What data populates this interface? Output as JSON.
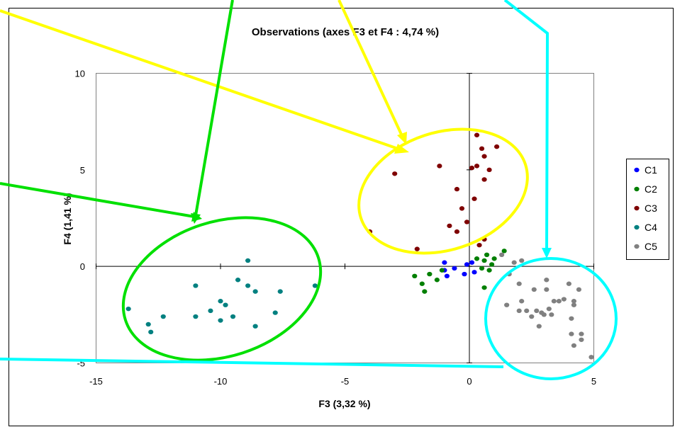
{
  "chart_data": {
    "type": "scatter",
    "title": "Observations (axes F3 et F4 : 4,74 %)",
    "xlabel": "F3 (3,32 %)",
    "ylabel": "F4 (1,41 %)",
    "xlim": [
      -15,
      5
    ],
    "ylim": [
      -5,
      10
    ],
    "x_ticks": [
      "-15",
      "-10",
      "-5",
      "0",
      "5"
    ],
    "y_ticks": [
      "10",
      "5",
      "0",
      "-5"
    ],
    "legend_position": "right",
    "series": [
      {
        "name": "C1",
        "color": "#0000ff",
        "points": [
          [
            -1.0,
            -0.2
          ],
          [
            -0.9,
            -0.5
          ],
          [
            -0.6,
            -0.1
          ],
          [
            -0.2,
            -0.4
          ],
          [
            -0.1,
            0.1
          ],
          [
            0.1,
            0.2
          ],
          [
            0.2,
            -0.3
          ],
          [
            -1.0,
            0.2
          ]
        ]
      },
      {
        "name": "C2",
        "color": "#007f00",
        "points": [
          [
            -2.2,
            -0.5
          ],
          [
            -1.9,
            -0.9
          ],
          [
            -1.8,
            -1.3
          ],
          [
            -1.6,
            -0.4
          ],
          [
            -1.3,
            -0.7
          ],
          [
            -1.1,
            -0.2
          ],
          [
            0.3,
            0.4
          ],
          [
            0.5,
            -0.1
          ],
          [
            0.6,
            0.3
          ],
          [
            0.7,
            0.6
          ],
          [
            0.8,
            -0.2
          ],
          [
            0.9,
            0.1
          ],
          [
            0.6,
            -1.1
          ],
          [
            1.0,
            0.4
          ],
          [
            1.4,
            0.8
          ]
        ]
      },
      {
        "name": "C3",
        "color": "#7f0000",
        "points": [
          [
            0.3,
            6.8
          ],
          [
            0.5,
            6.1
          ],
          [
            1.1,
            6.2
          ],
          [
            0.6,
            5.7
          ],
          [
            -1.2,
            5.2
          ],
          [
            0.1,
            5.1
          ],
          [
            0.3,
            5.2
          ],
          [
            0.8,
            5.0
          ],
          [
            -3.0,
            4.8
          ],
          [
            0.6,
            4.5
          ],
          [
            -0.5,
            4.0
          ],
          [
            0.2,
            3.5
          ],
          [
            -0.3,
            3.0
          ],
          [
            -0.1,
            2.3
          ],
          [
            -0.8,
            2.1
          ],
          [
            -0.5,
            1.8
          ],
          [
            -4.0,
            1.8
          ],
          [
            0.6,
            1.4
          ],
          [
            0.4,
            1.1
          ],
          [
            -2.1,
            0.9
          ]
        ]
      },
      {
        "name": "C4",
        "color": "#008080",
        "points": [
          [
            -8.9,
            0.3
          ],
          [
            -9.3,
            -0.7
          ],
          [
            -11.0,
            -1.0
          ],
          [
            -8.9,
            -1.0
          ],
          [
            -7.6,
            -1.3
          ],
          [
            -8.6,
            -1.3
          ],
          [
            -6.2,
            -1.0
          ],
          [
            -10.0,
            -1.8
          ],
          [
            -9.8,
            -2.0
          ],
          [
            -10.4,
            -2.3
          ],
          [
            -9.5,
            -2.6
          ],
          [
            -10.0,
            -2.8
          ],
          [
            -11.0,
            -2.6
          ],
          [
            -12.3,
            -2.6
          ],
          [
            -7.8,
            -2.4
          ],
          [
            -13.7,
            -2.2
          ],
          [
            -12.9,
            -3.0
          ],
          [
            -8.6,
            -3.1
          ],
          [
            -12.8,
            -3.4
          ]
        ]
      },
      {
        "name": "C5",
        "color": "#808080",
        "points": [
          [
            1.3,
            0.6
          ],
          [
            1.8,
            0.2
          ],
          [
            2.1,
            0.3
          ],
          [
            1.6,
            -0.4
          ],
          [
            3.1,
            -0.7
          ],
          [
            2.0,
            -0.9
          ],
          [
            4.0,
            -0.9
          ],
          [
            2.6,
            -1.2
          ],
          [
            3.1,
            -1.2
          ],
          [
            4.4,
            -1.2
          ],
          [
            2.1,
            -1.8
          ],
          [
            3.8,
            -1.7
          ],
          [
            3.6,
            -1.8
          ],
          [
            3.4,
            -1.8
          ],
          [
            4.2,
            -1.8
          ],
          [
            4.2,
            -2.0
          ],
          [
            1.5,
            -2.0
          ],
          [
            3.2,
            -2.2
          ],
          [
            2.7,
            -2.3
          ],
          [
            2.0,
            -2.3
          ],
          [
            2.3,
            -2.3
          ],
          [
            2.9,
            -2.4
          ],
          [
            3.0,
            -2.5
          ],
          [
            3.3,
            -2.5
          ],
          [
            2.5,
            -2.6
          ],
          [
            4.1,
            -2.7
          ],
          [
            2.8,
            -3.1
          ],
          [
            4.5,
            -3.5
          ],
          [
            4.1,
            -3.5
          ],
          [
            4.5,
            -3.8
          ],
          [
            4.2,
            -4.1
          ],
          [
            4.9,
            -4.7
          ]
        ]
      }
    ]
  }
}
